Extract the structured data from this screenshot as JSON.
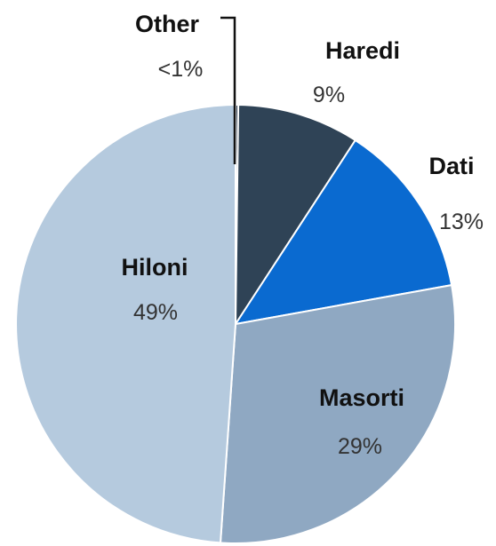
{
  "chart_data": {
    "type": "pie",
    "start_angle_deg": 0,
    "direction": "clockwise",
    "slices": [
      {
        "name": "Other",
        "value": 0.2,
        "label": "<1%",
        "color": "#2b3a4d"
      },
      {
        "name": "Haredi",
        "value": 9,
        "label": "9%",
        "color": "#2f4356"
      },
      {
        "name": "Dati",
        "value": 13,
        "label": "13%",
        "color": "#0a6ad0"
      },
      {
        "name": "Masorti",
        "value": 29,
        "label": "29%",
        "color": "#8fa8c2"
      },
      {
        "name": "Hiloni",
        "value": 49,
        "label": "49%",
        "color": "#b5cade"
      }
    ]
  }
}
